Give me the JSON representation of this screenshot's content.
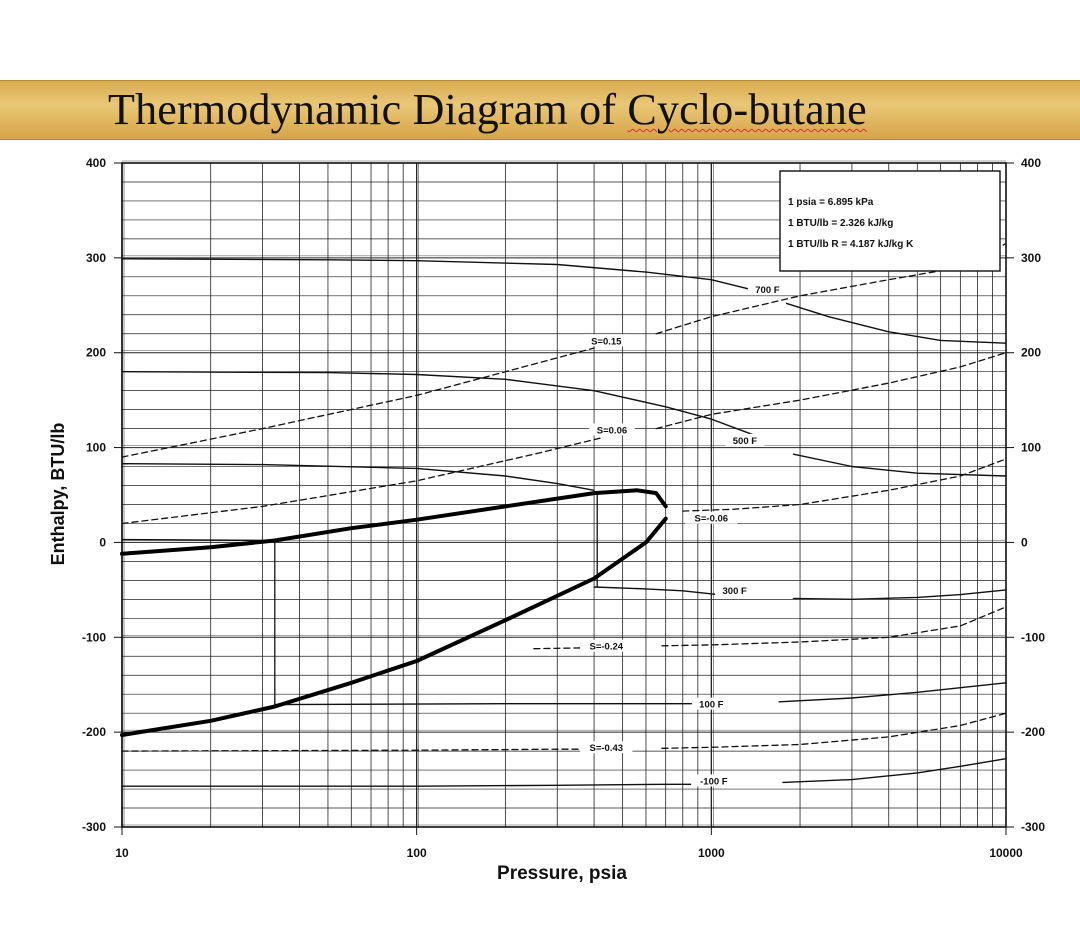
{
  "header": {
    "title_prefix": "Thermodynamic Diagram of ",
    "title_suffix": "Cyclo-butane"
  },
  "chart_data": {
    "type": "line",
    "title": "Thermodynamic Diagram of Cyclo-butane",
    "xlabel": "Pressure,  psia",
    "ylabel": "Enthalpy, BTU/lb",
    "xscale": "log",
    "xlim": [
      10,
      10000
    ],
    "ylim": [
      -300,
      400
    ],
    "x_tick_labels": [
      "10",
      "100",
      "1000",
      "10000"
    ],
    "y_tick_labels_left": [
      "400",
      "300",
      "200",
      "100",
      "0",
      "-100",
      "-200",
      "-300"
    ],
    "y_tick_labels_right": [
      "400",
      "300",
      "200",
      "100",
      "0",
      "-100",
      "-200",
      "-300"
    ],
    "y_tick_values": [
      400,
      300,
      200,
      100,
      0,
      -100,
      -200,
      -300
    ],
    "grid": true,
    "conversion_box": {
      "position": "top-right",
      "lines": [
        "1 psia  =  6.895 kPa",
        "1 BTU/lb  =  2.326 kJ/kg",
        "1 BTU/lb R  =  4.187 kJ/kg K"
      ]
    },
    "saturation_dome": {
      "liquid": {
        "x": [
          10,
          20,
          33,
          60,
          100,
          200,
          400,
          600,
          700
        ],
        "y": [
          -203,
          -188,
          -173,
          -148,
          -125,
          -82,
          -38,
          0,
          25
        ]
      },
      "vapor": {
        "x": [
          10,
          20,
          33,
          60,
          100,
          200,
          400,
          560,
          650,
          700
        ],
        "y": [
          -12,
          -5,
          2,
          15,
          24,
          38,
          52,
          55,
          52,
          38
        ]
      }
    },
    "isotherms": [
      {
        "label": "700 F",
        "label_x": 1550,
        "label_y": 265,
        "segments": [
          {
            "x": [
              10,
              50,
              100,
              300,
              600,
              1000,
              1350
            ],
            "y": [
              299,
              298,
              297,
              293,
              285,
              277,
              267
            ]
          },
          {
            "x": [
              1800,
              2500,
              4000,
              6000,
              10000
            ],
            "y": [
              252,
              238,
              222,
              213,
              210
            ]
          }
        ]
      },
      {
        "label": "500 F",
        "label_x": 1300,
        "label_y": 106,
        "segments": [
          {
            "x": [
              10,
              50,
              100,
              200,
              400,
              700,
              1000,
              1400
            ],
            "y": [
              180,
              179,
              177,
              172,
              160,
              143,
              130,
              113
            ]
          },
          {
            "x": [
              1900,
              3000,
              5000,
              10000
            ],
            "y": [
              93,
              80,
              73,
              70
            ]
          }
        ]
      },
      {
        "label": "300 F",
        "label_x": 1200,
        "label_y": -52,
        "segments": [
          {
            "x": [
              10,
              30,
              100,
              200,
              300,
              400
            ],
            "y": [
              83,
              82,
              78,
              70,
              62,
              55
            ]
          },
          {
            "x": [
              400,
              600,
              800,
              1050
            ],
            "y": [
              -47,
              -49,
              -51,
              -55
            ]
          },
          {
            "x": [
              1900,
              3000,
              5000,
              7000,
              10000
            ],
            "y": [
              -59,
              -60,
              -58,
              -55,
              -50
            ]
          }
        ]
      },
      {
        "label": "100 F",
        "label_x": 1000,
        "label_y": -172,
        "segments": [
          {
            "x": [
              10,
              33
            ],
            "y": [
              3,
              2
            ]
          },
          {
            "x": [
              33,
              200,
              500,
              950
            ],
            "y": [
              -171,
              -170,
              -170,
              -170
            ]
          },
          {
            "x": [
              1700,
              3000,
              5000,
              10000
            ],
            "y": [
              -168,
              -164,
              -158,
              -148
            ]
          }
        ]
      },
      {
        "label": "-100 F",
        "label_x": 1020,
        "label_y": -253,
        "segments": [
          {
            "x": [
              10,
              100,
              300,
              700,
              950
            ],
            "y": [
              -257,
              -257,
              -256,
              -255,
              -255
            ]
          },
          {
            "x": [
              1750,
              3000,
              5000,
              7000,
              10000
            ],
            "y": [
              -253,
              -250,
              -243,
              -236,
              -228
            ]
          }
        ]
      }
    ],
    "isentropes": [
      {
        "label": "S=0.15",
        "label_x": 440,
        "label_y": 211,
        "segments": [
          {
            "x": [
              10,
              30,
              100,
              250,
              400
            ],
            "y": [
              90,
              120,
              155,
              188,
              205
            ]
          },
          {
            "x": [
              650,
              1000,
              2000,
              4000,
              7000,
              10000
            ],
            "y": [
              220,
              238,
              260,
              277,
              290,
              315
            ]
          }
        ]
      },
      {
        "label": "S=0.06",
        "label_x": 460,
        "label_y": 117,
        "segments": [
          {
            "x": [
              10,
              30,
              100,
              250,
              420
            ],
            "y": [
              20,
              38,
              65,
              93,
              110
            ]
          },
          {
            "x": [
              650,
              1000,
              2000,
              4000,
              7000,
              10000
            ],
            "y": [
              120,
              135,
              150,
              168,
              185,
              200
            ]
          }
        ]
      },
      {
        "label": "S=-0.06",
        "label_x": 1000,
        "label_y": 24,
        "segments": [
          {
            "x": [
              800,
              1200,
              2000,
              4000,
              7000,
              10000
            ],
            "y": [
              33,
              35,
              40,
              55,
              70,
              88
            ]
          }
        ]
      },
      {
        "label": "S=-0.24",
        "label_x": 440,
        "label_y": -111,
        "segments": [
          {
            "x": [
              250,
              400
            ],
            "y": [
              -112,
              -111
            ]
          },
          {
            "x": [
              680,
              1000,
              2000,
              4000,
              7000,
              10000
            ],
            "y": [
              -109,
              -108,
              -105,
              -100,
              -88,
              -68
            ]
          }
        ]
      },
      {
        "label": "S=-0.43",
        "label_x": 440,
        "label_y": -218,
        "segments": [
          {
            "x": [
              10,
              100,
              300,
              400
            ],
            "y": [
              -220,
              -219,
              -218,
              -218
            ]
          },
          {
            "x": [
              680,
              1000,
              2000,
              4000,
              7000,
              10000
            ],
            "y": [
              -217,
              -216,
              -213,
              -205,
              -193,
              -180
            ]
          }
        ]
      }
    ],
    "cycle_lines": [
      {
        "x": [
          33,
          33
        ],
        "y": [
          2,
          -171
        ]
      },
      {
        "x": [
          410,
          410
        ],
        "y": [
          52,
          -47
        ]
      }
    ]
  }
}
